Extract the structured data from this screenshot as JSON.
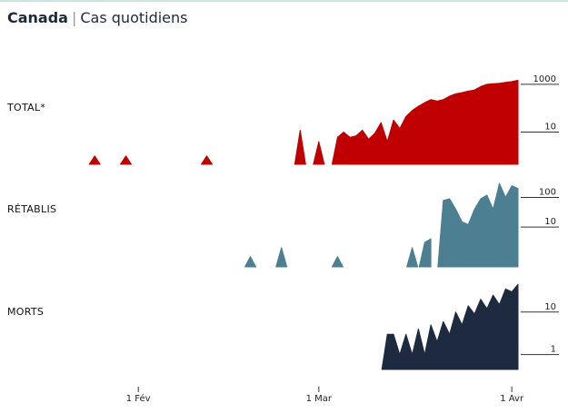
{
  "header": {
    "country": "Canada",
    "separator": "|",
    "subtitle": "Cas quotidiens"
  },
  "chart_data": {
    "type": "area",
    "scale": "log",
    "x_ticks": [
      "1 Fév",
      "1 Mar",
      "1 Avr"
    ],
    "x": [
      "2020-01-26",
      "2020-02-01",
      "2020-02-06",
      "2020-02-11",
      "2020-02-16",
      "2020-02-21",
      "2020-02-26",
      "2020-03-01",
      "2020-03-06",
      "2020-03-11",
      "2020-03-16",
      "2020-03-21",
      "2020-03-26",
      "2020-03-31",
      "2020-04-02"
    ],
    "series": [
      {
        "name": "TOTAL*",
        "color": "#c00000",
        "y_ticks": [
          "1000",
          "10"
        ],
        "points": [
          [
            "2020-01-25",
            1
          ],
          [
            "2020-01-30",
            1
          ],
          [
            "2020-02-12",
            1
          ],
          [
            "2020-02-27",
            12
          ],
          [
            "2020-03-01",
            4
          ],
          [
            "2020-03-04",
            6
          ],
          [
            "2020-03-05",
            10
          ],
          [
            "2020-03-06",
            6
          ],
          [
            "2020-03-07",
            7
          ],
          [
            "2020-03-08",
            12
          ],
          [
            "2020-03-09",
            5
          ],
          [
            "2020-03-10",
            9
          ],
          [
            "2020-03-11",
            25
          ],
          [
            "2020-03-12",
            4
          ],
          [
            "2020-03-13",
            32
          ],
          [
            "2020-03-14",
            14
          ],
          [
            "2020-03-15",
            45
          ],
          [
            "2020-03-16",
            80
          ],
          [
            "2020-03-17",
            120
          ],
          [
            "2020-03-18",
            170
          ],
          [
            "2020-03-19",
            230
          ],
          [
            "2020-03-20",
            200
          ],
          [
            "2020-03-21",
            230
          ],
          [
            "2020-03-22",
            320
          ],
          [
            "2020-03-23",
            400
          ],
          [
            "2020-03-24",
            450
          ],
          [
            "2020-03-25",
            520
          ],
          [
            "2020-03-26",
            580
          ],
          [
            "2020-03-27",
            800
          ],
          [
            "2020-03-28",
            1000
          ],
          [
            "2020-03-29",
            1050
          ],
          [
            "2020-03-30",
            1100
          ],
          [
            "2020-03-31",
            1200
          ],
          [
            "2020-04-01",
            1300
          ],
          [
            "2020-04-02",
            1500
          ]
        ]
      },
      {
        "name": "RÉTABLIS",
        "color": "#4c7f91",
        "y_ticks": [
          "100",
          "10"
        ],
        "points": [
          [
            "2020-02-19",
            1
          ],
          [
            "2020-02-24",
            2
          ],
          [
            "2020-03-04",
            1
          ],
          [
            "2020-03-16",
            2
          ],
          [
            "2020-03-18",
            3
          ],
          [
            "2020-03-19",
            4
          ],
          [
            "2020-03-21",
            80
          ],
          [
            "2020-03-22",
            90
          ],
          [
            "2020-03-23",
            40
          ],
          [
            "2020-03-24",
            15
          ],
          [
            "2020-03-25",
            12
          ],
          [
            "2020-03-26",
            40
          ],
          [
            "2020-03-27",
            90
          ],
          [
            "2020-03-28",
            120
          ],
          [
            "2020-03-29",
            40
          ],
          [
            "2020-03-30",
            300
          ],
          [
            "2020-03-31",
            100
          ],
          [
            "2020-04-01",
            250
          ],
          [
            "2020-04-02",
            200
          ]
        ]
      },
      {
        "name": "MORTS",
        "color": "#1e2a40",
        "y_ticks": [
          "10",
          "1"
        ],
        "points": [
          [
            "2020-03-12",
            3
          ],
          [
            "2020-03-13",
            3
          ],
          [
            "2020-03-14",
            1
          ],
          [
            "2020-03-15",
            3
          ],
          [
            "2020-03-16",
            1
          ],
          [
            "2020-03-17",
            4
          ],
          [
            "2020-03-18",
            1
          ],
          [
            "2020-03-19",
            5
          ],
          [
            "2020-03-20",
            2
          ],
          [
            "2020-03-21",
            6
          ],
          [
            "2020-03-22",
            3
          ],
          [
            "2020-03-23",
            10
          ],
          [
            "2020-03-24",
            5
          ],
          [
            "2020-03-25",
            14
          ],
          [
            "2020-03-26",
            9
          ],
          [
            "2020-03-27",
            20
          ],
          [
            "2020-03-28",
            12
          ],
          [
            "2020-03-29",
            25
          ],
          [
            "2020-03-30",
            15
          ],
          [
            "2020-03-31",
            35
          ],
          [
            "2020-04-01",
            30
          ],
          [
            "2020-04-02",
            45
          ]
        ]
      }
    ]
  }
}
